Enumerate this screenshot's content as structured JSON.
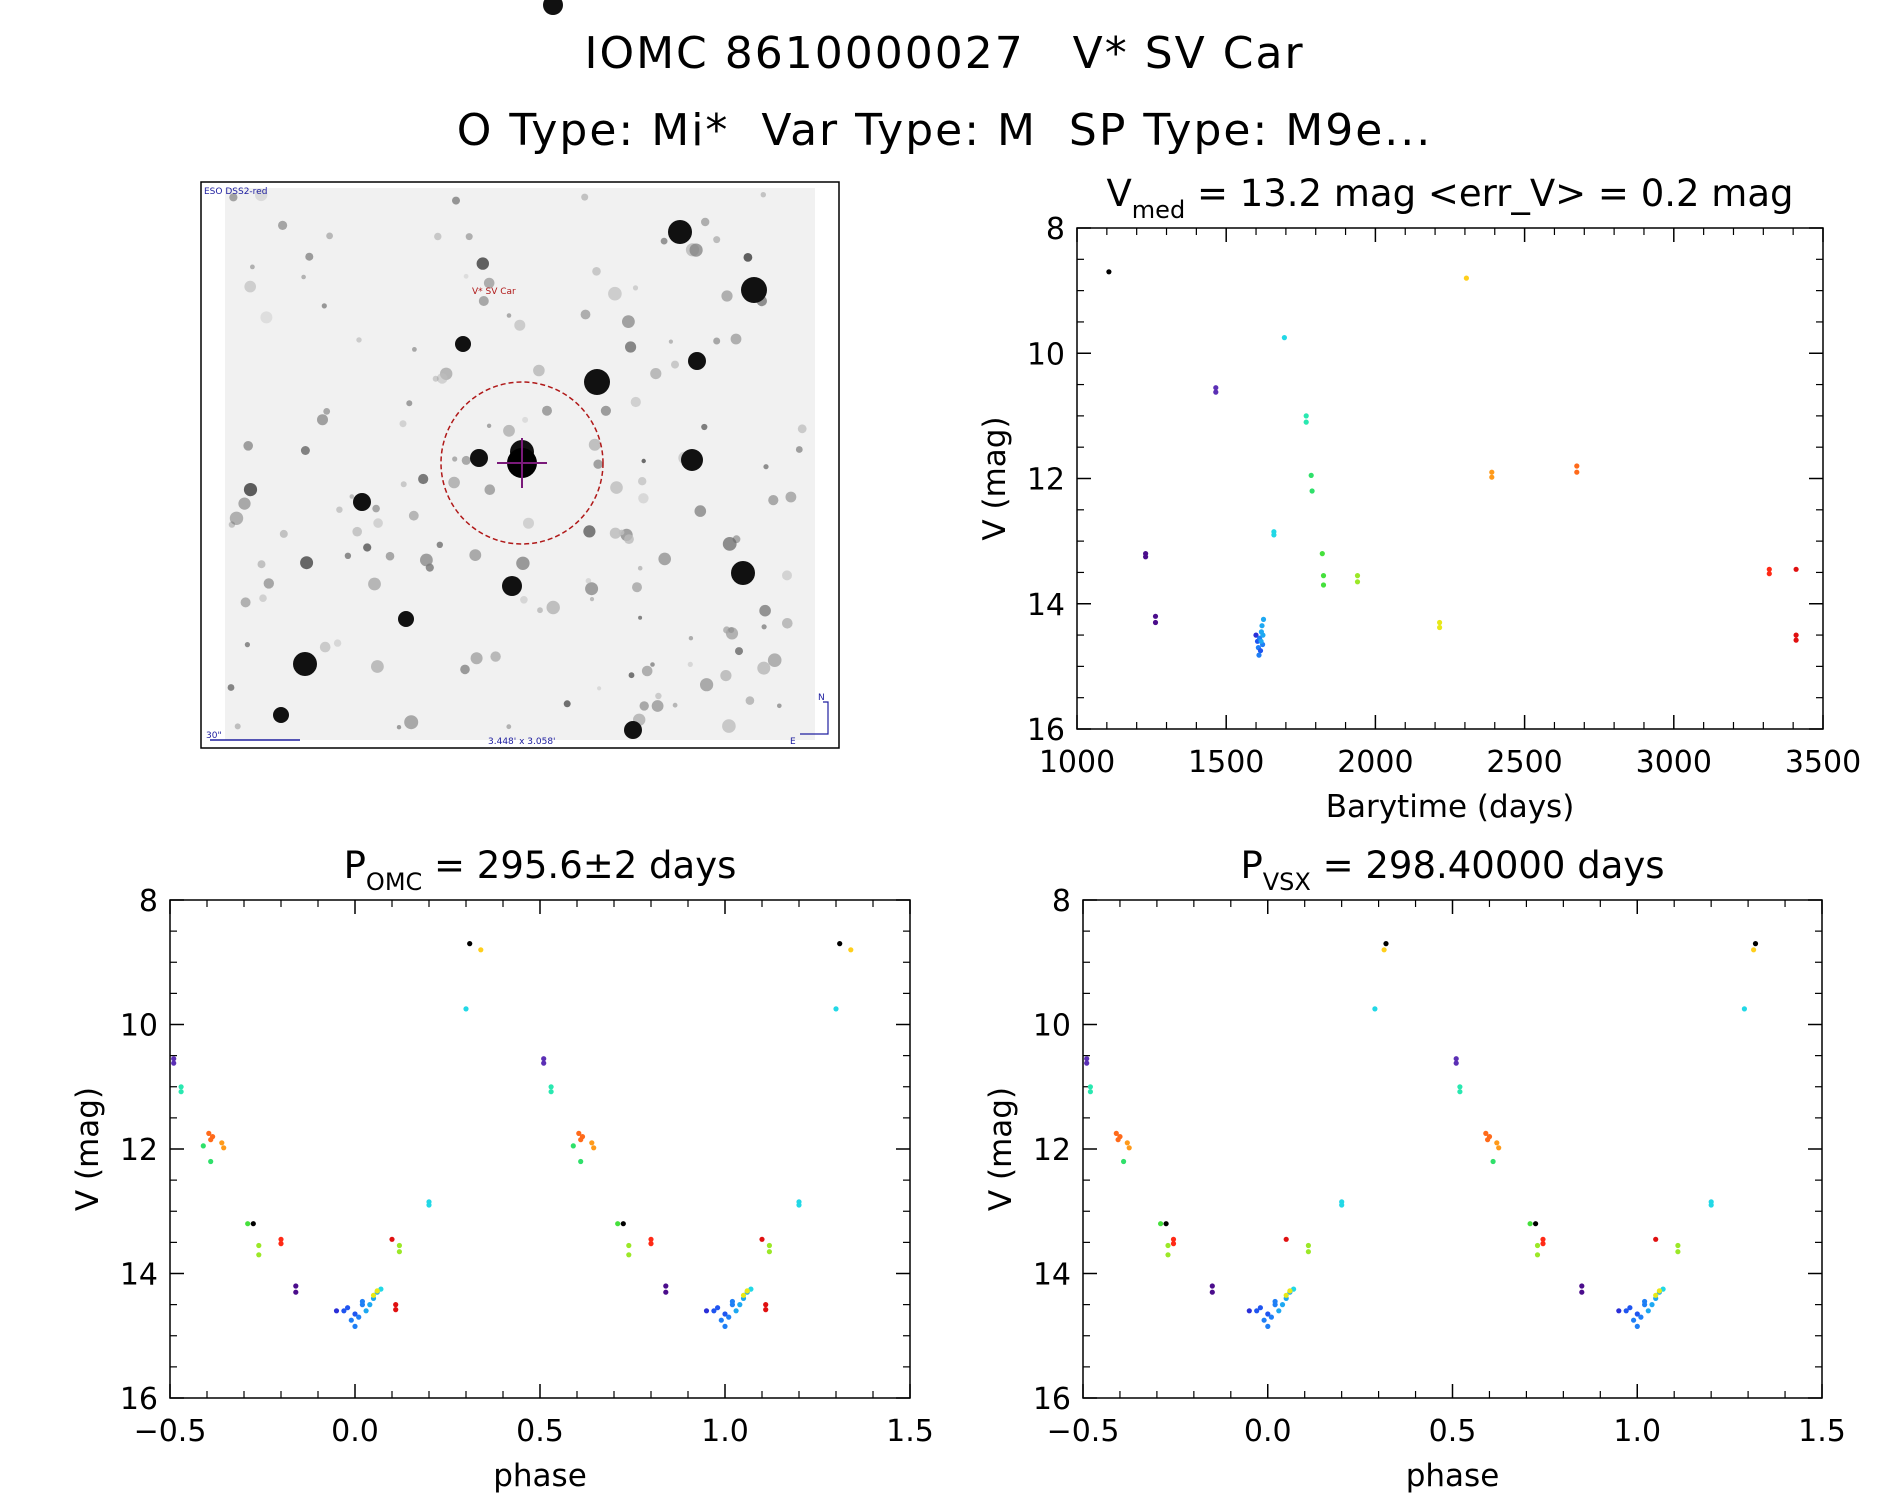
{
  "header": {
    "title_line1": "IOMC 8610000027   V* SV Car",
    "title_line2": "O Type: Mi*  Var Type: M  SP Type: M9e..."
  },
  "sky_image": {
    "survey_label": "ESO DSS2-red",
    "target_label": "V* SV Car",
    "scale_label": "30\"",
    "size_label": "3.448' x 3.058'",
    "north_label": "N",
    "east_label": "E"
  },
  "colors": {
    "palette": [
      "#000000",
      "#4b0d8c",
      "#5b2fb5",
      "#2b2fd8",
      "#1f55f0",
      "#1f7ff5",
      "#1ea8f2",
      "#22d8e6",
      "#29e8b0",
      "#2fe06a",
      "#45e03c",
      "#9be827",
      "#e8e818",
      "#ffcf1c",
      "#ff9a1a",
      "#ff6a1a",
      "#ff2a16",
      "#e01010"
    ],
    "circle": "#b01818",
    "cross": "#7a1a7a",
    "blue_label": "#2020a0"
  },
  "chart_data": [
    {
      "id": "time",
      "type": "scatter",
      "title_main": "V",
      "title_sub": "med",
      "title_rest": " = 13.2 mag <err_V> = 0.2 mag",
      "xlabel": "Barytime (days)",
      "ylabel": "V (mag)",
      "xlim": [
        1000,
        3500
      ],
      "ylim": [
        16,
        8
      ],
      "xticks": [
        1000,
        1500,
        2000,
        2500,
        3000,
        3500
      ],
      "yticks": [
        8,
        10,
        12,
        14,
        16
      ],
      "points": [
        {
          "x": 1107,
          "y": 8.7,
          "c": 0
        },
        {
          "x": 1230,
          "y": 13.2,
          "c": 1
        },
        {
          "x": 1230,
          "y": 13.25,
          "c": 1
        },
        {
          "x": 1263,
          "y": 14.2,
          "c": 1
        },
        {
          "x": 1263,
          "y": 14.3,
          "c": 1
        },
        {
          "x": 1465,
          "y": 10.55,
          "c": 2
        },
        {
          "x": 1465,
          "y": 10.62,
          "c": 2
        },
        {
          "x": 1600,
          "y": 14.5,
          "c": 3
        },
        {
          "x": 1605,
          "y": 14.6,
          "c": 4
        },
        {
          "x": 1608,
          "y": 14.7,
          "c": 5
        },
        {
          "x": 1612,
          "y": 14.55,
          "c": 5
        },
        {
          "x": 1615,
          "y": 14.75,
          "c": 4
        },
        {
          "x": 1618,
          "y": 14.45,
          "c": 6
        },
        {
          "x": 1620,
          "y": 14.35,
          "c": 6
        },
        {
          "x": 1622,
          "y": 14.65,
          "c": 5
        },
        {
          "x": 1625,
          "y": 14.25,
          "c": 6
        },
        {
          "x": 1610,
          "y": 14.82,
          "c": 5
        },
        {
          "x": 1617,
          "y": 14.6,
          "c": 6
        },
        {
          "x": 1623,
          "y": 14.5,
          "c": 6
        },
        {
          "x": 1660,
          "y": 12.85,
          "c": 7
        },
        {
          "x": 1660,
          "y": 12.9,
          "c": 7
        },
        {
          "x": 1695,
          "y": 9.75,
          "c": 7
        },
        {
          "x": 1768,
          "y": 11.0,
          "c": 8
        },
        {
          "x": 1768,
          "y": 11.1,
          "c": 8
        },
        {
          "x": 1785,
          "y": 11.95,
          "c": 9
        },
        {
          "x": 1788,
          "y": 12.2,
          "c": 9
        },
        {
          "x": 1822,
          "y": 13.2,
          "c": 10
        },
        {
          "x": 1826,
          "y": 13.55,
          "c": 10
        },
        {
          "x": 1826,
          "y": 13.7,
          "c": 10
        },
        {
          "x": 1940,
          "y": 13.55,
          "c": 11
        },
        {
          "x": 1940,
          "y": 13.65,
          "c": 11
        },
        {
          "x": 2215,
          "y": 14.3,
          "c": 12
        },
        {
          "x": 2215,
          "y": 14.38,
          "c": 12
        },
        {
          "x": 2305,
          "y": 8.8,
          "c": 13
        },
        {
          "x": 2390,
          "y": 11.9,
          "c": 14
        },
        {
          "x": 2390,
          "y": 11.98,
          "c": 14
        },
        {
          "x": 2675,
          "y": 11.8,
          "c": 15
        },
        {
          "x": 2675,
          "y": 11.9,
          "c": 15
        },
        {
          "x": 3320,
          "y": 13.45,
          "c": 16
        },
        {
          "x": 3320,
          "y": 13.52,
          "c": 16
        },
        {
          "x": 3410,
          "y": 13.45,
          "c": 17
        },
        {
          "x": 3410,
          "y": 14.5,
          "c": 17
        },
        {
          "x": 3410,
          "y": 14.58,
          "c": 17
        }
      ]
    },
    {
      "id": "phase_omc",
      "type": "scatter",
      "title_main": "P",
      "title_sub": "OMC",
      "title_rest": " = 295.6±2 days",
      "xlabel": "phase",
      "ylabel": "V (mag)",
      "xlim": [
        -0.5,
        1.5
      ],
      "ylim": [
        16,
        8
      ],
      "xticks": [
        -0.5,
        0.0,
        0.5,
        1.0,
        1.5
      ],
      "yticks": [
        8,
        10,
        12,
        14,
        16
      ],
      "points": [
        {
          "x": -0.49,
          "y": 10.55,
          "c": 2
        },
        {
          "x": -0.49,
          "y": 10.62,
          "c": 2
        },
        {
          "x": -0.47,
          "y": 11.0,
          "c": 8
        },
        {
          "x": -0.47,
          "y": 11.08,
          "c": 8
        },
        {
          "x": -0.41,
          "y": 11.95,
          "c": 9
        },
        {
          "x": -0.39,
          "y": 12.2,
          "c": 9
        },
        {
          "x": -0.395,
          "y": 11.75,
          "c": 15
        },
        {
          "x": -0.39,
          "y": 11.85,
          "c": 15
        },
        {
          "x": -0.385,
          "y": 11.8,
          "c": 15
        },
        {
          "x": -0.36,
          "y": 11.9,
          "c": 14
        },
        {
          "x": -0.355,
          "y": 11.98,
          "c": 14
        },
        {
          "x": -0.29,
          "y": 13.2,
          "c": 10
        },
        {
          "x": -0.275,
          "y": 13.2,
          "c": 0
        },
        {
          "x": -0.26,
          "y": 13.55,
          "c": 11
        },
        {
          "x": -0.26,
          "y": 13.7,
          "c": 11
        },
        {
          "x": -0.2,
          "y": 13.45,
          "c": 16
        },
        {
          "x": -0.2,
          "y": 13.52,
          "c": 16
        },
        {
          "x": -0.16,
          "y": 14.2,
          "c": 1
        },
        {
          "x": -0.16,
          "y": 14.3,
          "c": 1
        },
        {
          "x": -0.05,
          "y": 14.6,
          "c": 3
        },
        {
          "x": -0.02,
          "y": 14.55,
          "c": 4
        },
        {
          "x": 0.0,
          "y": 14.65,
          "c": 4
        },
        {
          "x": 0.01,
          "y": 14.7,
          "c": 5
        },
        {
          "x": 0.02,
          "y": 14.5,
          "c": 5
        },
        {
          "x": 0.03,
          "y": 14.6,
          "c": 6
        },
        {
          "x": -0.01,
          "y": 14.75,
          "c": 5
        },
        {
          "x": 0.0,
          "y": 14.85,
          "c": 5
        },
        {
          "x": 0.04,
          "y": 14.5,
          "c": 6
        },
        {
          "x": 0.05,
          "y": 14.4,
          "c": 6
        },
        {
          "x": 0.06,
          "y": 14.3,
          "c": 6
        },
        {
          "x": 0.07,
          "y": 14.25,
          "c": 7
        },
        {
          "x": -0.03,
          "y": 14.6,
          "c": 4
        },
        {
          "x": 0.02,
          "y": 14.45,
          "c": 5
        },
        {
          "x": 0.05,
          "y": 14.35,
          "c": 12
        },
        {
          "x": 0.06,
          "y": 14.28,
          "c": 12
        },
        {
          "x": 0.1,
          "y": 13.45,
          "c": 17
        },
        {
          "x": 0.11,
          "y": 14.5,
          "c": 17
        },
        {
          "x": 0.11,
          "y": 14.58,
          "c": 17
        },
        {
          "x": 0.12,
          "y": 13.55,
          "c": 11
        },
        {
          "x": 0.12,
          "y": 13.65,
          "c": 11
        },
        {
          "x": 0.2,
          "y": 12.85,
          "c": 7
        },
        {
          "x": 0.2,
          "y": 12.9,
          "c": 7
        },
        {
          "x": 0.3,
          "y": 9.75,
          "c": 7
        },
        {
          "x": 0.31,
          "y": 8.7,
          "c": 0
        },
        {
          "x": 0.34,
          "y": 8.8,
          "c": 13
        },
        {
          "x": 0.51,
          "y": 10.55,
          "c": 2
        },
        {
          "x": 0.51,
          "y": 10.62,
          "c": 2
        },
        {
          "x": 0.53,
          "y": 11.0,
          "c": 8
        },
        {
          "x": 0.53,
          "y": 11.08,
          "c": 8
        },
        {
          "x": 0.59,
          "y": 11.95,
          "c": 9
        },
        {
          "x": 0.61,
          "y": 12.2,
          "c": 9
        },
        {
          "x": 0.605,
          "y": 11.75,
          "c": 15
        },
        {
          "x": 0.61,
          "y": 11.85,
          "c": 15
        },
        {
          "x": 0.615,
          "y": 11.8,
          "c": 15
        },
        {
          "x": 0.64,
          "y": 11.9,
          "c": 14
        },
        {
          "x": 0.645,
          "y": 11.98,
          "c": 14
        },
        {
          "x": 0.71,
          "y": 13.2,
          "c": 10
        },
        {
          "x": 0.725,
          "y": 13.2,
          "c": 0
        },
        {
          "x": 0.74,
          "y": 13.55,
          "c": 11
        },
        {
          "x": 0.74,
          "y": 13.7,
          "c": 11
        },
        {
          "x": 0.8,
          "y": 13.45,
          "c": 16
        },
        {
          "x": 0.8,
          "y": 13.52,
          "c": 16
        },
        {
          "x": 0.84,
          "y": 14.2,
          "c": 1
        },
        {
          "x": 0.84,
          "y": 14.3,
          "c": 1
        },
        {
          "x": 0.95,
          "y": 14.6,
          "c": 3
        },
        {
          "x": 0.98,
          "y": 14.55,
          "c": 4
        },
        {
          "x": 1.0,
          "y": 14.65,
          "c": 4
        },
        {
          "x": 1.01,
          "y": 14.7,
          "c": 5
        },
        {
          "x": 1.02,
          "y": 14.5,
          "c": 5
        },
        {
          "x": 1.03,
          "y": 14.6,
          "c": 6
        },
        {
          "x": 0.99,
          "y": 14.75,
          "c": 5
        },
        {
          "x": 1.0,
          "y": 14.85,
          "c": 5
        },
        {
          "x": 1.04,
          "y": 14.5,
          "c": 6
        },
        {
          "x": 1.05,
          "y": 14.4,
          "c": 6
        },
        {
          "x": 1.06,
          "y": 14.3,
          "c": 6
        },
        {
          "x": 1.07,
          "y": 14.25,
          "c": 7
        },
        {
          "x": 0.97,
          "y": 14.6,
          "c": 4
        },
        {
          "x": 1.02,
          "y": 14.45,
          "c": 5
        },
        {
          "x": 1.05,
          "y": 14.35,
          "c": 12
        },
        {
          "x": 1.06,
          "y": 14.28,
          "c": 12
        },
        {
          "x": 1.1,
          "y": 13.45,
          "c": 17
        },
        {
          "x": 1.11,
          "y": 14.5,
          "c": 17
        },
        {
          "x": 1.11,
          "y": 14.58,
          "c": 17
        },
        {
          "x": 1.12,
          "y": 13.55,
          "c": 11
        },
        {
          "x": 1.12,
          "y": 13.65,
          "c": 11
        },
        {
          "x": 1.2,
          "y": 12.85,
          "c": 7
        },
        {
          "x": 1.2,
          "y": 12.9,
          "c": 7
        },
        {
          "x": 1.3,
          "y": 9.75,
          "c": 7
        },
        {
          "x": 1.31,
          "y": 8.7,
          "c": 0
        },
        {
          "x": 1.34,
          "y": 8.8,
          "c": 13
        }
      ]
    },
    {
      "id": "phase_vsx",
      "type": "scatter",
      "title_main": "P",
      "title_sub": "VSX",
      "title_rest": " = 298.40000 days",
      "xlabel": "phase",
      "ylabel": "V (mag)",
      "xlim": [
        -0.5,
        1.5
      ],
      "ylim": [
        16,
        8
      ],
      "xticks": [
        -0.5,
        0.0,
        0.5,
        1.0,
        1.5
      ],
      "yticks": [
        8,
        10,
        12,
        14,
        16
      ],
      "points": [
        {
          "x": -0.49,
          "y": 10.55,
          "c": 2
        },
        {
          "x": -0.49,
          "y": 10.62,
          "c": 2
        },
        {
          "x": -0.48,
          "y": 11.0,
          "c": 8
        },
        {
          "x": -0.48,
          "y": 11.08,
          "c": 8
        },
        {
          "x": -0.41,
          "y": 11.75,
          "c": 15
        },
        {
          "x": -0.405,
          "y": 11.85,
          "c": 15
        },
        {
          "x": -0.4,
          "y": 11.8,
          "c": 15
        },
        {
          "x": -0.38,
          "y": 11.9,
          "c": 14
        },
        {
          "x": -0.375,
          "y": 11.98,
          "c": 14
        },
        {
          "x": -0.39,
          "y": 12.2,
          "c": 9
        },
        {
          "x": -0.29,
          "y": 13.2,
          "c": 10
        },
        {
          "x": -0.275,
          "y": 13.2,
          "c": 0
        },
        {
          "x": -0.27,
          "y": 13.55,
          "c": 11
        },
        {
          "x": -0.27,
          "y": 13.7,
          "c": 11
        },
        {
          "x": -0.255,
          "y": 13.45,
          "c": 16
        },
        {
          "x": -0.255,
          "y": 13.52,
          "c": 16
        },
        {
          "x": -0.15,
          "y": 14.2,
          "c": 1
        },
        {
          "x": -0.15,
          "y": 14.3,
          "c": 1
        },
        {
          "x": -0.05,
          "y": 14.6,
          "c": 3
        },
        {
          "x": -0.02,
          "y": 14.55,
          "c": 4
        },
        {
          "x": 0.0,
          "y": 14.65,
          "c": 4
        },
        {
          "x": 0.01,
          "y": 14.7,
          "c": 5
        },
        {
          "x": 0.02,
          "y": 14.5,
          "c": 5
        },
        {
          "x": 0.03,
          "y": 14.6,
          "c": 6
        },
        {
          "x": -0.01,
          "y": 14.75,
          "c": 5
        },
        {
          "x": 0.0,
          "y": 14.85,
          "c": 5
        },
        {
          "x": 0.04,
          "y": 14.5,
          "c": 6
        },
        {
          "x": 0.05,
          "y": 14.4,
          "c": 6
        },
        {
          "x": 0.06,
          "y": 14.3,
          "c": 6
        },
        {
          "x": 0.07,
          "y": 14.25,
          "c": 7
        },
        {
          "x": -0.03,
          "y": 14.6,
          "c": 4
        },
        {
          "x": 0.02,
          "y": 14.45,
          "c": 5
        },
        {
          "x": 0.05,
          "y": 14.35,
          "c": 12
        },
        {
          "x": 0.06,
          "y": 14.28,
          "c": 12
        },
        {
          "x": 0.05,
          "y": 13.45,
          "c": 17
        },
        {
          "x": 0.11,
          "y": 13.55,
          "c": 11
        },
        {
          "x": 0.11,
          "y": 13.65,
          "c": 11
        },
        {
          "x": 0.2,
          "y": 12.85,
          "c": 7
        },
        {
          "x": 0.2,
          "y": 12.9,
          "c": 7
        },
        {
          "x": 0.29,
          "y": 9.75,
          "c": 7
        },
        {
          "x": 0.32,
          "y": 8.7,
          "c": 0
        },
        {
          "x": 0.315,
          "y": 8.8,
          "c": 13
        },
        {
          "x": 0.51,
          "y": 10.55,
          "c": 2
        },
        {
          "x": 0.51,
          "y": 10.62,
          "c": 2
        },
        {
          "x": 0.52,
          "y": 11.0,
          "c": 8
        },
        {
          "x": 0.52,
          "y": 11.08,
          "c": 8
        },
        {
          "x": 0.59,
          "y": 11.75,
          "c": 15
        },
        {
          "x": 0.595,
          "y": 11.85,
          "c": 15
        },
        {
          "x": 0.6,
          "y": 11.8,
          "c": 15
        },
        {
          "x": 0.62,
          "y": 11.9,
          "c": 14
        },
        {
          "x": 0.625,
          "y": 11.98,
          "c": 14
        },
        {
          "x": 0.61,
          "y": 12.2,
          "c": 9
        },
        {
          "x": 0.71,
          "y": 13.2,
          "c": 10
        },
        {
          "x": 0.725,
          "y": 13.2,
          "c": 0
        },
        {
          "x": 0.73,
          "y": 13.55,
          "c": 11
        },
        {
          "x": 0.73,
          "y": 13.7,
          "c": 11
        },
        {
          "x": 0.745,
          "y": 13.45,
          "c": 16
        },
        {
          "x": 0.745,
          "y": 13.52,
          "c": 16
        },
        {
          "x": 0.85,
          "y": 14.2,
          "c": 1
        },
        {
          "x": 0.85,
          "y": 14.3,
          "c": 1
        },
        {
          "x": 0.95,
          "y": 14.6,
          "c": 3
        },
        {
          "x": 0.98,
          "y": 14.55,
          "c": 4
        },
        {
          "x": 1.0,
          "y": 14.65,
          "c": 4
        },
        {
          "x": 1.01,
          "y": 14.7,
          "c": 5
        },
        {
          "x": 1.02,
          "y": 14.5,
          "c": 5
        },
        {
          "x": 1.03,
          "y": 14.6,
          "c": 6
        },
        {
          "x": 0.99,
          "y": 14.75,
          "c": 5
        },
        {
          "x": 1.0,
          "y": 14.85,
          "c": 5
        },
        {
          "x": 1.04,
          "y": 14.5,
          "c": 6
        },
        {
          "x": 1.05,
          "y": 14.4,
          "c": 6
        },
        {
          "x": 1.06,
          "y": 14.3,
          "c": 6
        },
        {
          "x": 1.07,
          "y": 14.25,
          "c": 7
        },
        {
          "x": 0.97,
          "y": 14.6,
          "c": 4
        },
        {
          "x": 1.02,
          "y": 14.45,
          "c": 5
        },
        {
          "x": 1.05,
          "y": 14.35,
          "c": 12
        },
        {
          "x": 1.06,
          "y": 14.28,
          "c": 12
        },
        {
          "x": 1.05,
          "y": 13.45,
          "c": 17
        },
        {
          "x": 1.11,
          "y": 13.55,
          "c": 11
        },
        {
          "x": 1.11,
          "y": 13.65,
          "c": 11
        },
        {
          "x": 1.2,
          "y": 12.85,
          "c": 7
        },
        {
          "x": 1.2,
          "y": 12.9,
          "c": 7
        },
        {
          "x": 1.29,
          "y": 9.75,
          "c": 7
        },
        {
          "x": 1.32,
          "y": 8.7,
          "c": 0
        },
        {
          "x": 1.315,
          "y": 8.8,
          "c": 13
        }
      ]
    }
  ]
}
